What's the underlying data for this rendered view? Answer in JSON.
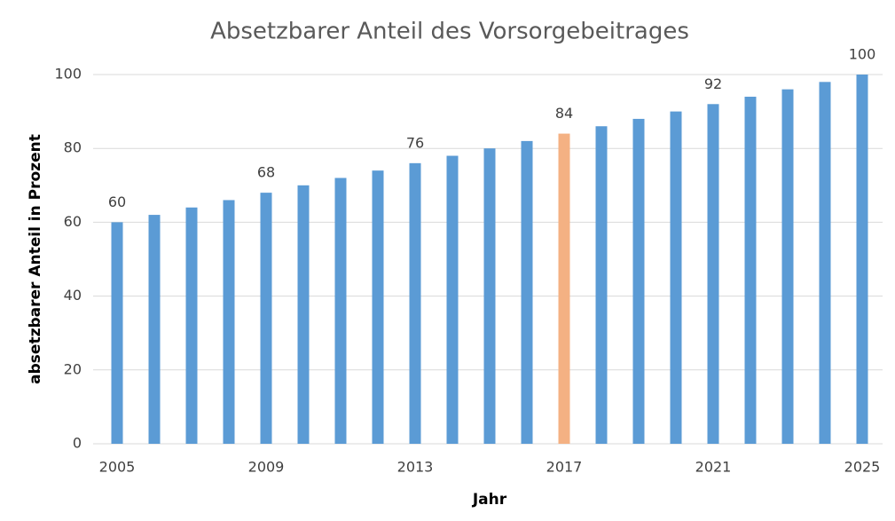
{
  "chart_data": {
    "type": "bar",
    "title": "Absetzbarer Anteil des Vorsorgebeitrages",
    "x_label": "Jahr",
    "y_label": "absetzbarer Anteil in Prozent",
    "categories": [
      "2005",
      null,
      null,
      null,
      "2009",
      null,
      null,
      null,
      "2013",
      null,
      null,
      null,
      "2017",
      null,
      null,
      null,
      "2021",
      null,
      null,
      null,
      "2025"
    ],
    "values": [
      60,
      62,
      64,
      66,
      68,
      70,
      72,
      74,
      76,
      78,
      80,
      82,
      84,
      86,
      88,
      90,
      92,
      94,
      96,
      98,
      100
    ],
    "value_labels": [
      "60",
      null,
      null,
      null,
      "68",
      null,
      null,
      null,
      "76",
      null,
      null,
      null,
      "84",
      null,
      null,
      null,
      "92",
      null,
      null,
      null,
      "100"
    ],
    "colors": [
      "#5b9bd5",
      "#5b9bd5",
      "#5b9bd5",
      "#5b9bd5",
      "#5b9bd5",
      "#5b9bd5",
      "#5b9bd5",
      "#5b9bd5",
      "#5b9bd5",
      "#5b9bd5",
      "#5b9bd5",
      "#5b9bd5",
      "#f4b183",
      "#5b9bd5",
      "#5b9bd5",
      "#5b9bd5",
      "#5b9bd5",
      "#5b9bd5",
      "#5b9bd5",
      "#5b9bd5",
      "#5b9bd5"
    ],
    "ylim": [
      0,
      100
    ],
    "yticks": [
      0,
      20,
      40,
      60,
      80,
      100
    ],
    "grid": true
  }
}
